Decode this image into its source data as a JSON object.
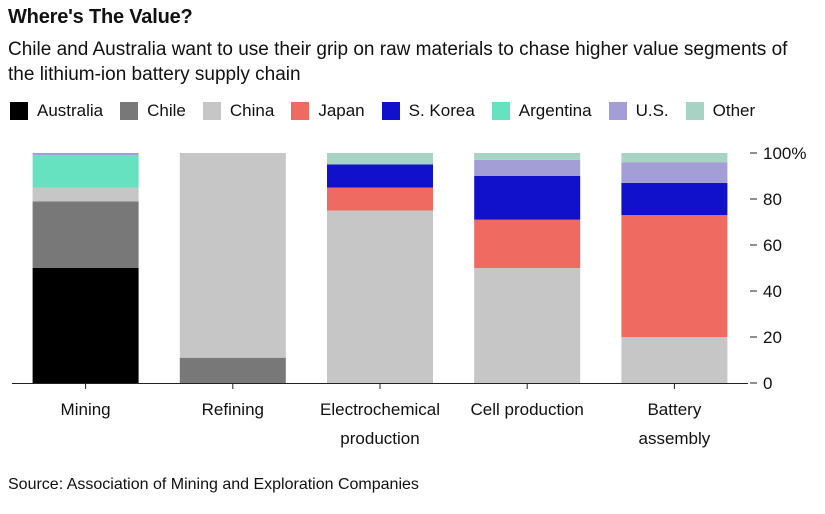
{
  "header": {
    "title": "Where's The Value?",
    "subtitle": "Chile and Australia want to use their grip on raw materials to chase higher value segments of the lithium-ion battery supply chain"
  },
  "legend": [
    {
      "label": "Australia",
      "color": "#000000"
    },
    {
      "label": "Chile",
      "color": "#787878"
    },
    {
      "label": "China",
      "color": "#c7c6c7"
    },
    {
      "label": "Japan",
      "color": "#ef6b62"
    },
    {
      "label": "S. Korea",
      "color": "#1111cc"
    },
    {
      "label": "Argentina",
      "color": "#66e2c0"
    },
    {
      "label": "U.S.",
      "color": "#a49ed6"
    },
    {
      "label": "Other",
      "color": "#a7d3c4"
    }
  ],
  "source": "Source: Association of Mining and Exploration Companies",
  "chart_data": {
    "type": "bar",
    "stacked": true,
    "categories": [
      "Mining",
      "Refining",
      "Electrochemical production",
      "Cell production",
      "Battery assembly"
    ],
    "category_label_lines": [
      [
        "Mining"
      ],
      [
        "Refining"
      ],
      [
        "Electrochemical",
        "production"
      ],
      [
        "Cell production"
      ],
      [
        "Battery",
        "assembly"
      ]
    ],
    "ylim": [
      0,
      100
    ],
    "y_ticks": [
      0,
      20,
      40,
      60,
      80,
      100
    ],
    "y_tick_labels": [
      "0",
      "20",
      "40",
      "60",
      "80",
      "100%"
    ],
    "y_axis_side": "right",
    "grid": false,
    "series": [
      {
        "name": "Australia",
        "color": "#000000",
        "values": [
          50,
          0,
          0,
          0,
          0
        ]
      },
      {
        "name": "Chile",
        "color": "#787878",
        "values": [
          29,
          11,
          0,
          0,
          0
        ]
      },
      {
        "name": "China",
        "color": "#c7c6c7",
        "values": [
          6,
          89,
          75,
          50,
          20
        ]
      },
      {
        "name": "Japan",
        "color": "#ef6b62",
        "values": [
          0,
          0,
          10,
          21,
          53
        ]
      },
      {
        "name": "S. Korea",
        "color": "#1111cc",
        "values": [
          0,
          0,
          10,
          19,
          14
        ]
      },
      {
        "name": "Argentina",
        "color": "#66e2c0",
        "values": [
          14,
          0,
          0,
          0,
          0
        ]
      },
      {
        "name": "U.S.",
        "color": "#a49ed6",
        "values": [
          1,
          0,
          0,
          7,
          9
        ]
      },
      {
        "name": "Other",
        "color": "#a7d3c4",
        "values": [
          0,
          0,
          5,
          3,
          4
        ]
      }
    ]
  }
}
